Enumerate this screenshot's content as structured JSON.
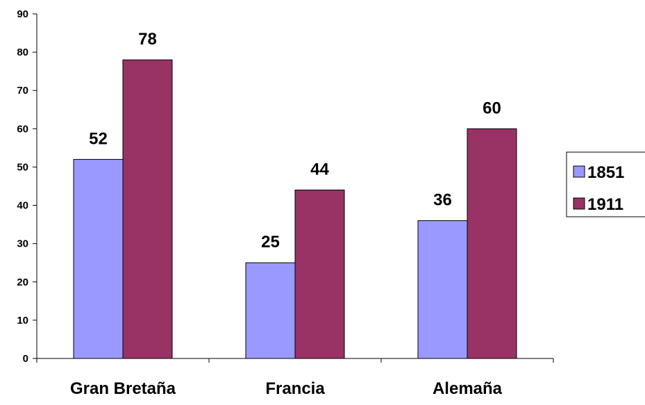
{
  "chart_data": {
    "type": "bar",
    "categories": [
      "Gran Bretaña",
      "Francia",
      "Alemaña"
    ],
    "series": [
      {
        "name": "1851",
        "values": [
          52,
          25,
          36
        ],
        "color": "#9999ff"
      },
      {
        "name": "1911",
        "values": [
          78,
          44,
          60
        ],
        "color": "#993366"
      }
    ],
    "ylim": [
      0,
      90
    ],
    "yticks": [
      0,
      10,
      20,
      30,
      40,
      50,
      60,
      70,
      80,
      90
    ],
    "grid": false,
    "legend_position": "right",
    "data_labels": true,
    "title": "",
    "xlabel": "",
    "ylabel": ""
  }
}
